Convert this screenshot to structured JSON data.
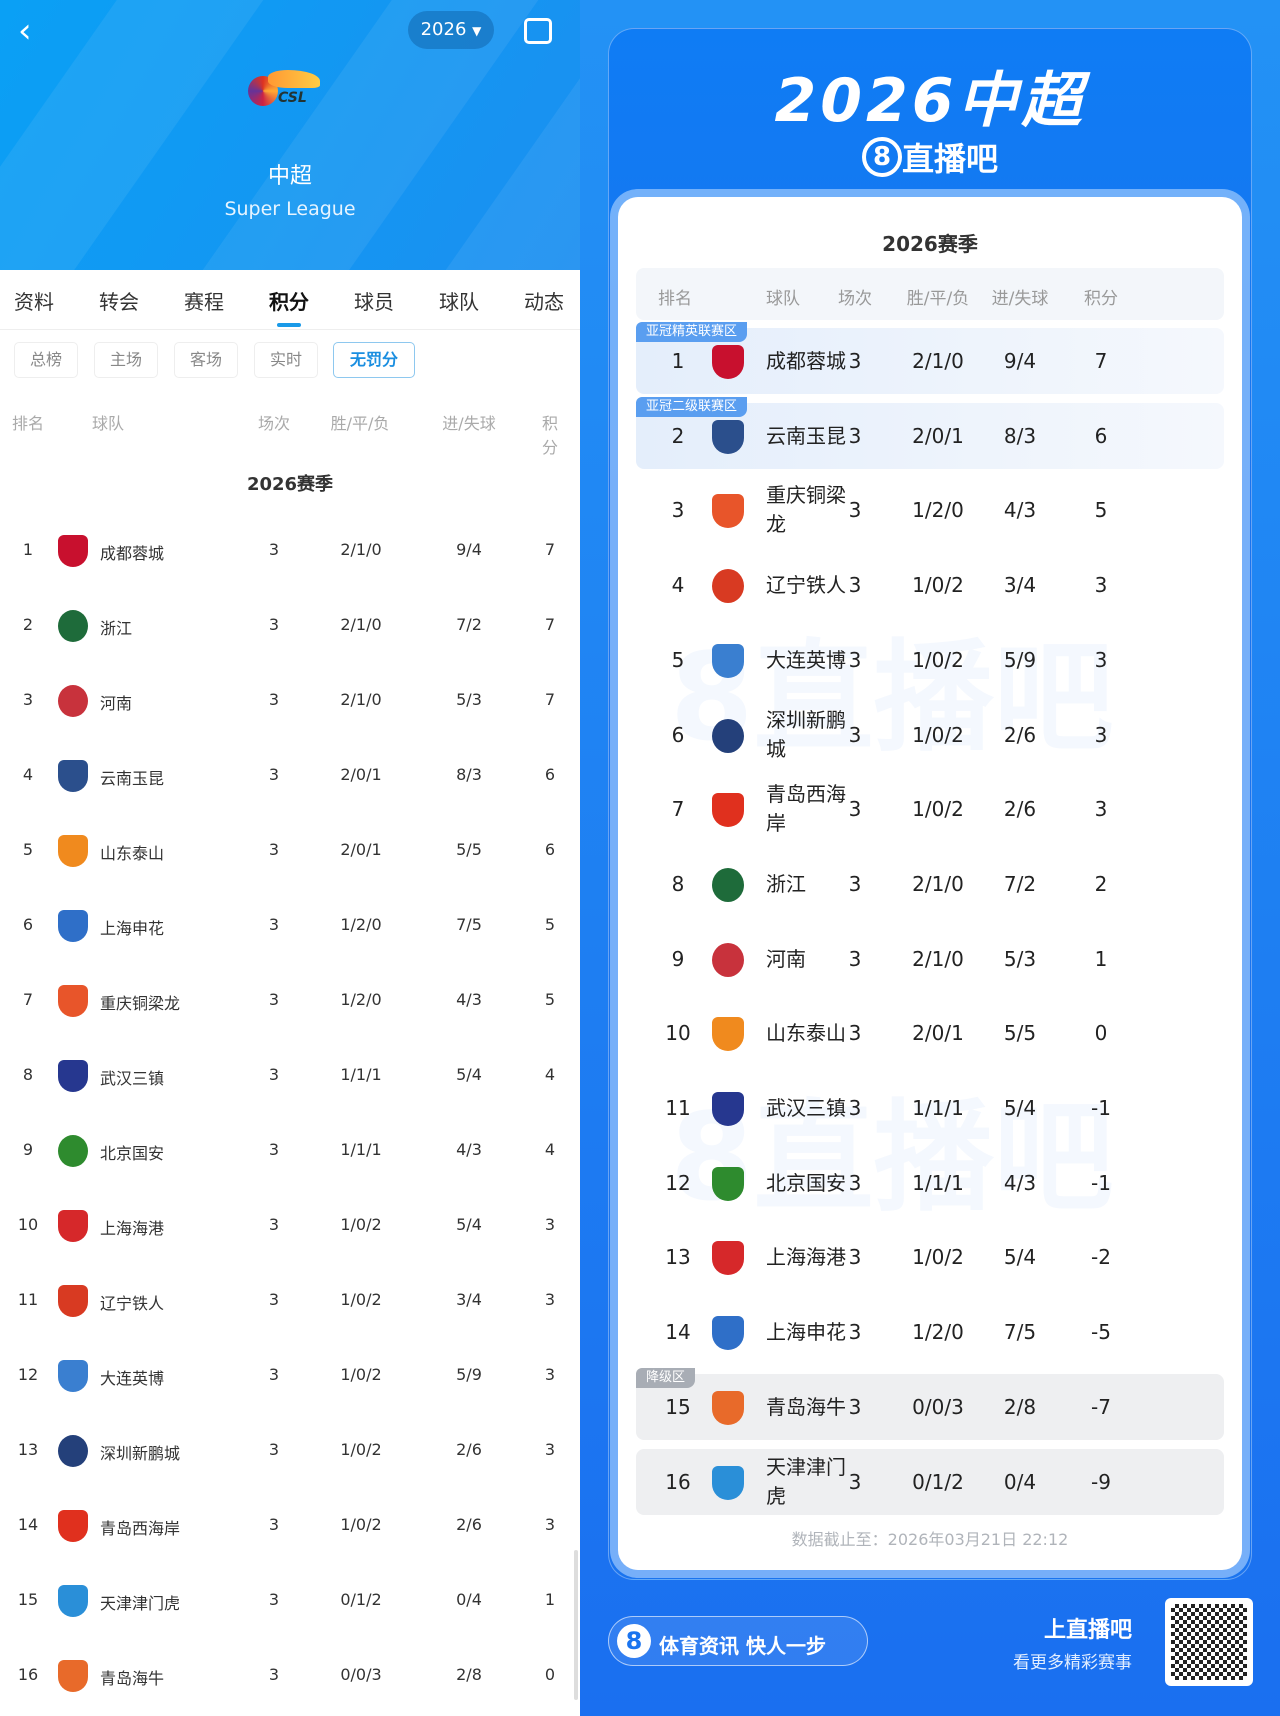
{
  "left": {
    "header": {
      "year": "2026",
      "league_cn": "中超",
      "league_en": "Super League",
      "logo_text": "CSL"
    },
    "tabs": [
      "资料",
      "转会",
      "赛程",
      "积分",
      "球员",
      "球队",
      "动态"
    ],
    "active_tab": "积分",
    "filters": [
      "总榜",
      "主场",
      "客场",
      "实时",
      "无罚分"
    ],
    "active_filter": "无罚分",
    "columns": [
      "排名",
      "球队",
      "场次",
      "胜/平/负",
      "进/失球",
      "积分"
    ],
    "season": "2026赛季",
    "rows": [
      {
        "rank": "1",
        "team": "成都蓉城",
        "played": "3",
        "wdl": "2/1/0",
        "goals": "9/4",
        "pts": "7",
        "color": "#c8102e"
      },
      {
        "rank": "2",
        "team": "浙江",
        "played": "3",
        "wdl": "2/1/0",
        "goals": "7/2",
        "pts": "7",
        "color": "#1e6b3a"
      },
      {
        "rank": "3",
        "team": "河南",
        "played": "3",
        "wdl": "2/1/0",
        "goals": "5/3",
        "pts": "7",
        "color": "#c8323c"
      },
      {
        "rank": "4",
        "team": "云南玉昆",
        "played": "3",
        "wdl": "2/0/1",
        "goals": "8/3",
        "pts": "6",
        "color": "#2b4f8c"
      },
      {
        "rank": "5",
        "team": "山东泰山",
        "played": "3",
        "wdl": "2/0/1",
        "goals": "5/5",
        "pts": "6",
        "color": "#f08a1e"
      },
      {
        "rank": "6",
        "team": "上海申花",
        "played": "3",
        "wdl": "1/2/0",
        "goals": "7/5",
        "pts": "5",
        "color": "#2f6fc8"
      },
      {
        "rank": "7",
        "team": "重庆铜梁龙",
        "played": "3",
        "wdl": "1/2/0",
        "goals": "4/3",
        "pts": "5",
        "color": "#e8552a"
      },
      {
        "rank": "8",
        "team": "武汉三镇",
        "played": "3",
        "wdl": "1/1/1",
        "goals": "5/4",
        "pts": "4",
        "color": "#26378f"
      },
      {
        "rank": "9",
        "team": "北京国安",
        "played": "3",
        "wdl": "1/1/1",
        "goals": "4/3",
        "pts": "4",
        "color": "#2e8b2e"
      },
      {
        "rank": "10",
        "team": "上海海港",
        "played": "3",
        "wdl": "1/0/2",
        "goals": "5/4",
        "pts": "3",
        "color": "#d6282a"
      },
      {
        "rank": "11",
        "team": "辽宁铁人",
        "played": "3",
        "wdl": "1/0/2",
        "goals": "3/4",
        "pts": "3",
        "color": "#d83a22"
      },
      {
        "rank": "12",
        "team": "大连英博",
        "played": "3",
        "wdl": "1/0/2",
        "goals": "5/9",
        "pts": "3",
        "color": "#3a7fd0"
      },
      {
        "rank": "13",
        "team": "深圳新鹏城",
        "played": "3",
        "wdl": "1/0/2",
        "goals": "2/6",
        "pts": "3",
        "color": "#24407a"
      },
      {
        "rank": "14",
        "team": "青岛西海岸",
        "played": "3",
        "wdl": "1/0/2",
        "goals": "2/6",
        "pts": "3",
        "color": "#e0301e"
      },
      {
        "rank": "15",
        "team": "天津津门虎",
        "played": "3",
        "wdl": "0/1/2",
        "goals": "0/4",
        "pts": "1",
        "color": "#2a8fd8"
      },
      {
        "rank": "16",
        "team": "青岛海牛",
        "played": "3",
        "wdl": "0/0/3",
        "goals": "2/8",
        "pts": "0",
        "color": "#e86a2a"
      }
    ]
  },
  "right": {
    "title": "2026中超",
    "brand": "直播吧",
    "season": "2026赛季",
    "columns": [
      "排名",
      "球队",
      "场次",
      "胜/平/负",
      "进/失球",
      "积分"
    ],
    "zones": {
      "acl_elite": "亚冠精英联赛区",
      "acl_two": "亚冠二级联赛区",
      "relegation": "降级区"
    },
    "rows": [
      {
        "rank": "1",
        "team": "成都蓉城",
        "played": "3",
        "wdl": "2/1/0",
        "goals": "9/4",
        "pts": "7",
        "color": "#c8102e",
        "zone": "acl_elite"
      },
      {
        "rank": "2",
        "team": "云南玉昆",
        "played": "3",
        "wdl": "2/0/1",
        "goals": "8/3",
        "pts": "6",
        "color": "#2b4f8c",
        "zone": "acl_two"
      },
      {
        "rank": "3",
        "team": "重庆铜梁龙",
        "played": "3",
        "wdl": "1/2/0",
        "goals": "4/3",
        "pts": "5",
        "color": "#e8552a"
      },
      {
        "rank": "4",
        "team": "辽宁铁人",
        "played": "3",
        "wdl": "1/0/2",
        "goals": "3/4",
        "pts": "3",
        "color": "#d83a22"
      },
      {
        "rank": "5",
        "team": "大连英博",
        "played": "3",
        "wdl": "1/0/2",
        "goals": "5/9",
        "pts": "3",
        "color": "#3a7fd0"
      },
      {
        "rank": "6",
        "team": "深圳新鹏城",
        "played": "3",
        "wdl": "1/0/2",
        "goals": "2/6",
        "pts": "3",
        "color": "#24407a"
      },
      {
        "rank": "7",
        "team": "青岛西海岸",
        "played": "3",
        "wdl": "1/0/2",
        "goals": "2/6",
        "pts": "3",
        "color": "#e0301e"
      },
      {
        "rank": "8",
        "team": "浙江",
        "played": "3",
        "wdl": "2/1/0",
        "goals": "7/2",
        "pts": "2",
        "color": "#1e6b3a"
      },
      {
        "rank": "9",
        "team": "河南",
        "played": "3",
        "wdl": "2/1/0",
        "goals": "5/3",
        "pts": "1",
        "color": "#c8323c"
      },
      {
        "rank": "10",
        "team": "山东泰山",
        "played": "3",
        "wdl": "2/0/1",
        "goals": "5/5",
        "pts": "0",
        "color": "#f08a1e"
      },
      {
        "rank": "11",
        "team": "武汉三镇",
        "played": "3",
        "wdl": "1/1/1",
        "goals": "5/4",
        "pts": "-1",
        "color": "#26378f"
      },
      {
        "rank": "12",
        "team": "北京国安",
        "played": "3",
        "wdl": "1/1/1",
        "goals": "4/3",
        "pts": "-1",
        "color": "#2e8b2e"
      },
      {
        "rank": "13",
        "team": "上海海港",
        "played": "3",
        "wdl": "1/0/2",
        "goals": "5/4",
        "pts": "-2",
        "color": "#d6282a"
      },
      {
        "rank": "14",
        "team": "上海申花",
        "played": "3",
        "wdl": "1/2/0",
        "goals": "7/5",
        "pts": "-5",
        "color": "#2f6fc8"
      },
      {
        "rank": "15",
        "team": "青岛海牛",
        "played": "3",
        "wdl": "0/0/3",
        "goals": "2/8",
        "pts": "-7",
        "color": "#e86a2a",
        "zone": "relegation"
      },
      {
        "rank": "16",
        "team": "天津津门虎",
        "played": "3",
        "wdl": "0/1/2",
        "goals": "0/4",
        "pts": "-9",
        "color": "#2a8fd8"
      }
    ],
    "updated": "数据截止至：2026年03月21日 22:12",
    "slogan": "体育资讯 快人一步",
    "cta_title": "上直播吧",
    "cta_sub": "看更多精彩赛事"
  },
  "colors": {
    "accent": "#1a9ae8",
    "header_blue": "#0aa0f5",
    "poster_blue": "#1a74ef",
    "zone_blue": "#5a9ef0",
    "zone_gray": "#a8adb5"
  }
}
